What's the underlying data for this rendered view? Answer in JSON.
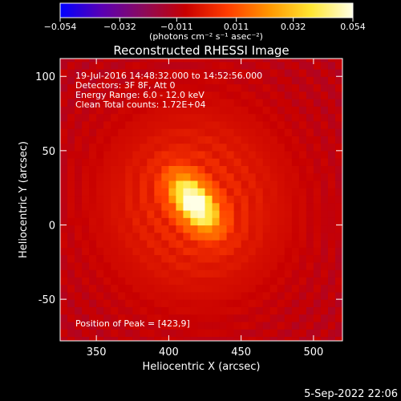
{
  "colorbar": {
    "ticks": [
      "−0.054",
      "−0.032",
      "−0.011",
      "0.011",
      "0.032",
      "0.054"
    ],
    "tick_values": [
      -0.054,
      -0.032,
      -0.011,
      0.011,
      0.032,
      0.054
    ],
    "range": [
      -0.054,
      0.054
    ],
    "unit_label": "(photons cm⁻² s⁻¹ asec⁻²)",
    "colors": [
      "#0000ff",
      "#5a00b4",
      "#8c0a5a",
      "#c80000",
      "#ff3c00",
      "#ff9600",
      "#ffe632",
      "#ffffe6"
    ]
  },
  "chart_data": {
    "type": "heatmap",
    "title": "Reconstructed RHESSI Image",
    "xlabel": "Heliocentric X (arcsec)",
    "ylabel": "Heliocentric Y (arcsec)",
    "xlim": [
      325,
      520
    ],
    "ylim": [
      -78,
      112
    ],
    "xticks": [
      350,
      400,
      450,
      500
    ],
    "yticks": [
      -50,
      0,
      50,
      100
    ],
    "grid": false,
    "peak": {
      "x": 423,
      "y": 9,
      "value": 0.054
    },
    "source_center": [
      418,
      15
    ],
    "annotations": [
      "19-Jul-2016 14:48:32.000 to 14:52:56.000",
      "Detectors: 3F 8F, Att 0",
      "Energy Range: 6.0 - 12.0 keV",
      "Clean     Total counts: 1.72E+04"
    ],
    "peak_label": "Position of Peak = [423,9]"
  },
  "footer": {
    "timestamp": "5-Sep-2022 22:06"
  }
}
